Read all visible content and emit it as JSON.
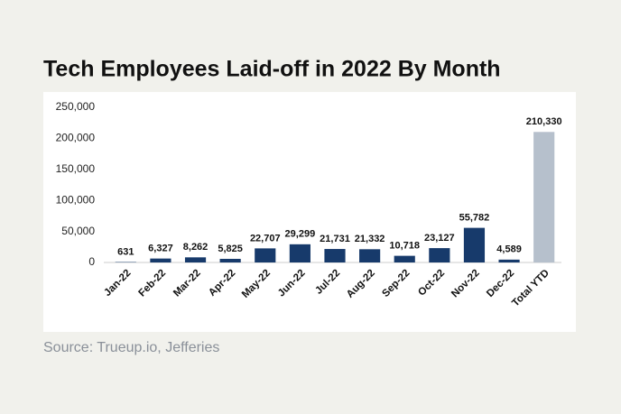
{
  "chart_data": {
    "type": "bar",
    "title": "Tech Employees Laid-off in 2022 By Month",
    "source": "Source: Trueup.io, Jefferies",
    "categories": [
      "Jan-22",
      "Feb-22",
      "Mar-22",
      "Apr-22",
      "May-22",
      "Jun-22",
      "Jul-22",
      "Aug-22",
      "Sep-22",
      "Oct-22",
      "Nov-22",
      "Dec-22",
      "Total YTD"
    ],
    "values": [
      631,
      6327,
      8262,
      5825,
      22707,
      29299,
      21731,
      21332,
      10718,
      23127,
      55782,
      4589,
      210330
    ],
    "value_labels": [
      "631",
      "6,327",
      "8,262",
      "5,825",
      "22,707",
      "29,299",
      "21,731",
      "21,332",
      "10,718",
      "23,127",
      "55,782",
      "4,589",
      "210,330"
    ],
    "colors": [
      "#173a6b",
      "#173a6b",
      "#173a6b",
      "#173a6b",
      "#173a6b",
      "#173a6b",
      "#173a6b",
      "#173a6b",
      "#173a6b",
      "#173a6b",
      "#173a6b",
      "#173a6b",
      "#b6c0cc"
    ],
    "ylim": [
      0,
      250000
    ],
    "yticks": [
      0,
      {
        "value": 50000,
        "label": "50,000"
      },
      {
        "value": 100000,
        "label": "100,000"
      },
      {
        "value": 150000,
        "label": "150,000"
      },
      {
        "value": 200000,
        "label": "200,000"
      },
      {
        "value": 250000,
        "label": "250,000"
      }
    ],
    "grid": false
  }
}
